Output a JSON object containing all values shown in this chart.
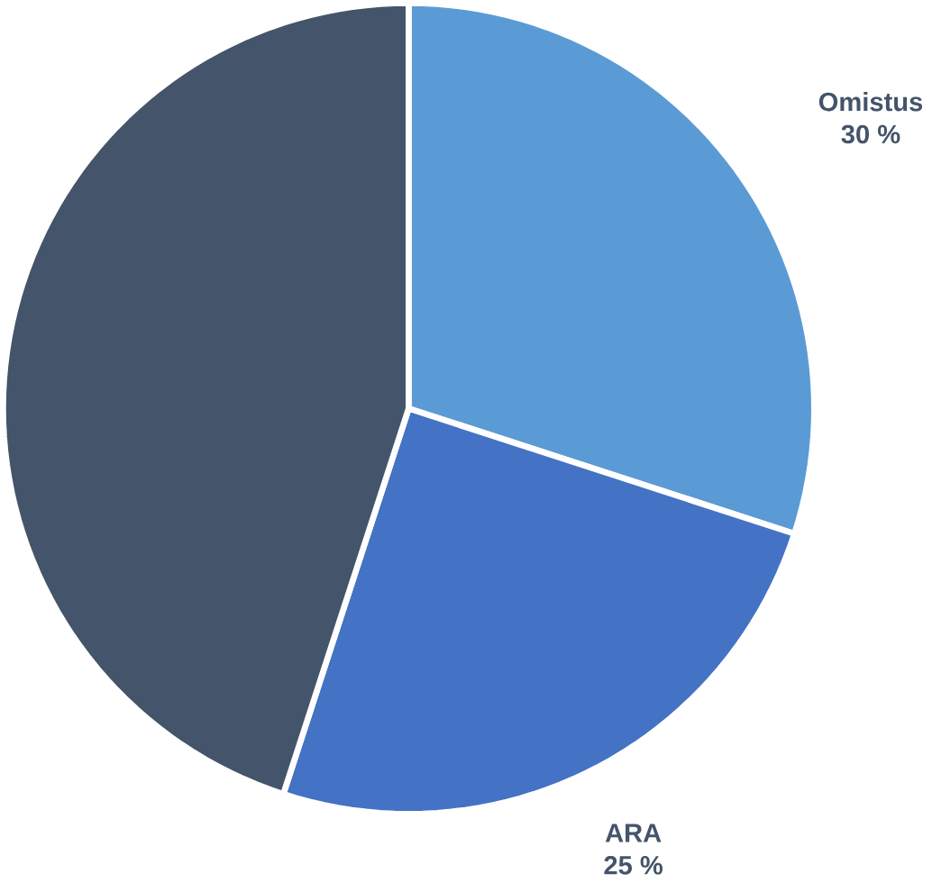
{
  "chart_data": {
    "type": "pie",
    "categories": [
      "Omistus",
      "ARA",
      null
    ],
    "values": [
      30,
      25,
      45
    ],
    "colors": [
      "#5b9bd5",
      "#4472c4",
      "#44546a"
    ],
    "value_labels": [
      "30 %",
      "25 %",
      null
    ]
  }
}
